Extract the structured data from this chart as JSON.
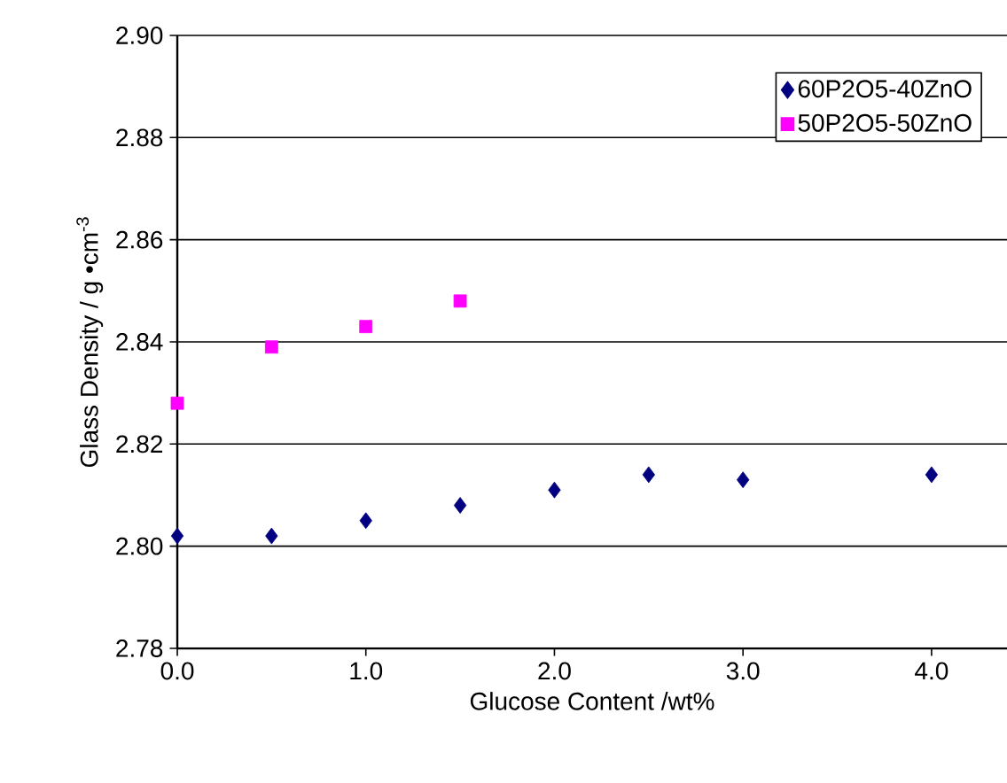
{
  "chart_data": {
    "type": "scatter",
    "xlabel": "Glucose Content /wt%",
    "ylabel": "Glass Density / g •cm$^{-3}$",
    "xlim": [
      0,
      4.4
    ],
    "ylim": [
      2.78,
      2.9
    ],
    "xticks": [
      {
        "value": 0,
        "label": "0.0"
      },
      {
        "value": 1,
        "label": "1.0"
      },
      {
        "value": 2,
        "label": "2.0"
      },
      {
        "value": 3,
        "label": "3.0"
      },
      {
        "value": 4,
        "label": "4.0"
      }
    ],
    "yticks": [
      {
        "value": 2.78,
        "label": "2.78"
      },
      {
        "value": 2.8,
        "label": "2.80"
      },
      {
        "value": 2.82,
        "label": "2.82"
      },
      {
        "value": 2.84,
        "label": "2.84"
      },
      {
        "value": 2.86,
        "label": "2.86"
      },
      {
        "value": 2.88,
        "label": "2.88"
      },
      {
        "value": 2.9,
        "label": "2.90"
      }
    ],
    "grid": "y",
    "legend": "top right",
    "series": [
      {
        "name": "60P2O5-40ZnO",
        "color": "#000080",
        "marker": "diamond",
        "x": [
          0,
          0.5,
          1,
          1.5,
          2,
          2.5,
          3,
          4
        ],
        "values": [
          2.802,
          2.802,
          2.805,
          2.808,
          2.811,
          2.814,
          2.813,
          2.814
        ]
      },
      {
        "name": "50P2O5-50ZnO",
        "color": "#ff00ff",
        "marker": "square",
        "x": [
          0,
          0.5,
          1,
          1.5
        ],
        "values": [
          2.828,
          2.839,
          2.843,
          2.848
        ]
      }
    ]
  }
}
